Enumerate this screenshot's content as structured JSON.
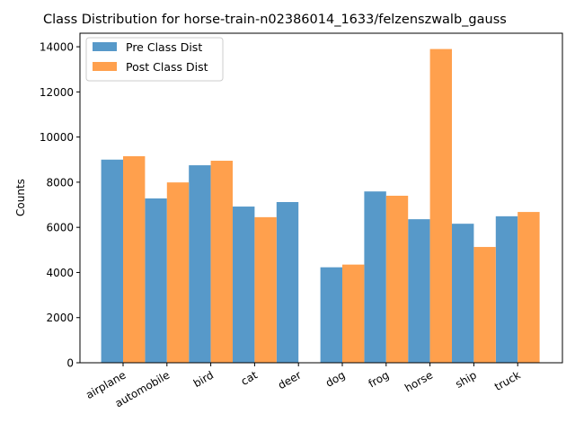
{
  "chart_data": {
    "type": "bar",
    "title": "Class Distribution for horse-train-n02386014_1633/felzenszwalb_gauss",
    "xlabel": "",
    "ylabel": "Counts",
    "categories": [
      "airplane",
      "automobile",
      "bird",
      "cat",
      "deer",
      "dog",
      "frog",
      "horse",
      "ship",
      "truck"
    ],
    "series": [
      {
        "name": "Pre Class Dist",
        "color": "#5799c9",
        "values": [
          9000,
          7280,
          8750,
          6920,
          7120,
          4230,
          7590,
          6360,
          6160,
          6490
        ]
      },
      {
        "name": "Post Class Dist",
        "color": "#ffa04d",
        "values": [
          9150,
          7990,
          8950,
          6450,
          0,
          4350,
          7400,
          13900,
          5130,
          6680
        ]
      }
    ],
    "ylim": [
      0,
      14600
    ],
    "yticks": [
      0,
      2000,
      4000,
      6000,
      8000,
      10000,
      12000,
      14000
    ],
    "grid": false,
    "legend_position": "top-left"
  }
}
